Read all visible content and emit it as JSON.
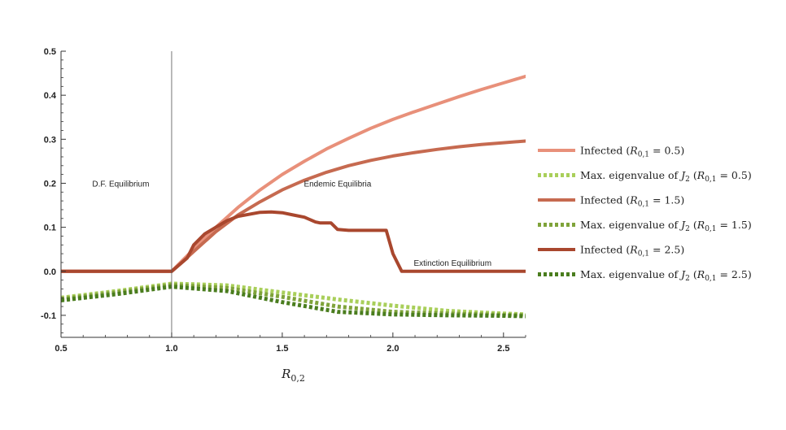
{
  "chart_data": {
    "type": "line",
    "xlabel": "R0,2",
    "xlabel_main": "R",
    "xlabel_sub": "0,2",
    "ylabel": "",
    "xlim": [
      0.5,
      2.6
    ],
    "ylim": [
      -0.15,
      0.5
    ],
    "xticks": [
      0.5,
      1.0,
      1.5,
      2.0,
      2.5
    ],
    "xtick_labels": [
      "0.5",
      "1.0",
      "1.5",
      "2.0",
      "2.5"
    ],
    "yticks": [
      -0.1,
      0.0,
      0.1,
      0.2,
      0.3,
      0.4,
      0.5
    ],
    "ytick_labels": [
      "-0.1",
      "0.0",
      "0.1",
      "0.2",
      "0.3",
      "0.4",
      "0.5"
    ],
    "vertical_line_x": 1.0,
    "grid": false,
    "legend_position": "right",
    "annotations": [
      {
        "text": "D.F. Equilibrium",
        "x": 0.77,
        "y": 0.2
      },
      {
        "text": "Endemic Equilibria",
        "x": 1.75,
        "y": 0.2
      },
      {
        "text": "Extinction Equilibrium",
        "x": 2.27,
        "y": 0.02
      }
    ],
    "series": [
      {
        "name": "Infected (R0,1 = 0.5)",
        "legend_main": "Infected (",
        "legend_param": "R",
        "legend_sub": "0,1",
        "legend_tail": " = 0.5)",
        "color": "#e8907a",
        "style": "solid",
        "x": [
          0.5,
          0.9,
          1.0,
          1.05,
          1.1,
          1.2,
          1.3,
          1.4,
          1.5,
          1.6,
          1.7,
          1.8,
          1.9,
          2.0,
          2.1,
          2.2,
          2.3,
          2.4,
          2.5,
          2.6
        ],
        "y": [
          0.0,
          0.0,
          0.0,
          0.025,
          0.05,
          0.1,
          0.145,
          0.185,
          0.22,
          0.25,
          0.278,
          0.302,
          0.325,
          0.345,
          0.363,
          0.38,
          0.397,
          0.413,
          0.428,
          0.443
        ]
      },
      {
        "name": "Max. eigenvalue of J2 (R0,1 = 0.5)",
        "legend_main": "Max. eigenvalue of ",
        "legend_mat": "J",
        "legend_mat_sub": "2",
        "legend_param": "R",
        "legend_sub": "0,1",
        "legend_tail": " = 0.5)",
        "color": "#a9cf5a",
        "style": "dotted",
        "x": [
          0.5,
          0.75,
          1.0,
          1.25,
          1.5,
          1.75,
          2.0,
          2.25,
          2.5,
          2.6
        ],
        "y": [
          -0.06,
          -0.045,
          -0.028,
          -0.032,
          -0.048,
          -0.064,
          -0.078,
          -0.09,
          -0.096,
          -0.098
        ]
      },
      {
        "name": "Infected (R0,1 = 1.5)",
        "legend_main": "Infected (",
        "legend_param": "R",
        "legend_sub": "0,1",
        "legend_tail": " = 1.5)",
        "color": "#c66a50",
        "style": "solid",
        "x": [
          0.5,
          0.9,
          1.0,
          1.05,
          1.1,
          1.2,
          1.3,
          1.4,
          1.5,
          1.6,
          1.7,
          1.8,
          1.9,
          2.0,
          2.1,
          2.2,
          2.3,
          2.4,
          2.5,
          2.6
        ],
        "y": [
          0.0,
          0.0,
          0.0,
          0.022,
          0.045,
          0.09,
          0.128,
          0.158,
          0.185,
          0.207,
          0.225,
          0.24,
          0.252,
          0.262,
          0.27,
          0.277,
          0.283,
          0.288,
          0.292,
          0.296
        ]
      },
      {
        "name": "Max. eigenvalue of J2 (R0,1 = 1.5)",
        "legend_main": "Max. eigenvalue of ",
        "legend_mat": "J",
        "legend_mat_sub": "2",
        "legend_param": "R",
        "legend_sub": "0,1",
        "legend_tail": " = 1.5)",
        "color": "#7fa33a",
        "style": "dotted",
        "x": [
          0.5,
          0.75,
          1.0,
          1.25,
          1.5,
          1.75,
          2.0,
          2.25,
          2.5,
          2.6
        ],
        "y": [
          -0.063,
          -0.048,
          -0.031,
          -0.038,
          -0.058,
          -0.08,
          -0.092,
          -0.096,
          -0.099,
          -0.1
        ]
      },
      {
        "name": "Infected (R0,1 = 2.5)",
        "legend_main": "Infected (",
        "legend_param": "R",
        "legend_sub": "0,1",
        "legend_tail": " = 2.5)",
        "color": "#a9472e",
        "style": "solid",
        "x": [
          0.5,
          0.9,
          1.0,
          1.07,
          1.1,
          1.15,
          1.2,
          1.25,
          1.3,
          1.4,
          1.45,
          1.5,
          1.55,
          1.6,
          1.65,
          1.67,
          1.72,
          1.75,
          1.8,
          1.9,
          1.97,
          2.0,
          2.04,
          2.6
        ],
        "y": [
          0.0,
          0.0,
          0.0,
          0.03,
          0.06,
          0.085,
          0.1,
          0.115,
          0.125,
          0.134,
          0.135,
          0.133,
          0.128,
          0.123,
          0.112,
          0.11,
          0.11,
          0.095,
          0.093,
          0.093,
          0.093,
          0.04,
          0.0,
          0.0
        ]
      },
      {
        "name": "Max. eigenvalue of J2 (R0,1 = 2.5)",
        "legend_main": "Max. eigenvalue of ",
        "legend_mat": "J",
        "legend_mat_sub": "2",
        "legend_param": "R",
        "legend_sub": "0,1",
        "legend_tail": " = 2.5)",
        "color": "#4a7d1e",
        "style": "dotted",
        "x": [
          0.5,
          0.75,
          1.0,
          1.25,
          1.5,
          1.75,
          2.0,
          2.25,
          2.5,
          2.6
        ],
        "y": [
          -0.066,
          -0.052,
          -0.035,
          -0.045,
          -0.07,
          -0.092,
          -0.098,
          -0.1,
          -0.101,
          -0.102
        ]
      }
    ]
  }
}
